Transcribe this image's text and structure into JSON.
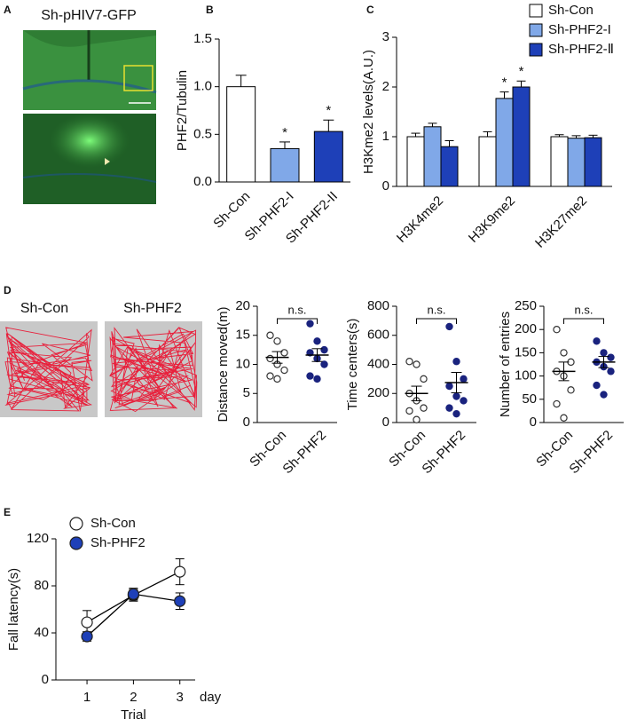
{
  "panel_labels": [
    "A",
    "B",
    "C",
    "D",
    "E"
  ],
  "image_panel": {
    "title": "Sh-pHIV7-GFP"
  },
  "open_field": {
    "labels": [
      "Sh-Con",
      "Sh-PHF2"
    ]
  },
  "chart_data": [
    {
      "type": "bar",
      "ylabel": "PHF2/Tubulin",
      "categories": [
        "Sh-Con",
        "Sh-PHF2-I",
        "Sh-PHF2-II"
      ],
      "values": [
        1.0,
        0.35,
        0.53
      ],
      "errors": [
        0.12,
        0.07,
        0.12
      ],
      "colors": [
        "#ffffff",
        "#80a8e8",
        "#1e40b8"
      ],
      "significance": [
        null,
        "*",
        "*"
      ],
      "ylim": [
        0,
        1.5
      ],
      "yticks": [
        {
          "value": 0,
          "label": "0.0"
        },
        {
          "value": 0.5,
          "label": "0.5"
        },
        {
          "value": 1,
          "label": "1.0"
        },
        {
          "value": 1.5,
          "label": "1.5"
        }
      ]
    },
    {
      "type": "grouped_bar",
      "ylabel": "H3Kme2 levels(A.U.)",
      "categories": [
        "H3K4me2",
        "H3K9me2",
        "H3K27me2"
      ],
      "series": [
        {
          "name": "Sh-Con",
          "color": "#ffffff",
          "values": [
            1.0,
            1.0,
            1.0
          ],
          "errors": [
            0.07,
            0.1,
            0.04
          ],
          "significance": [
            null,
            null,
            null
          ]
        },
        {
          "name": "Sh-PHF2-I",
          "color": "#80a8e8",
          "values": [
            1.2,
            1.77,
            0.97
          ],
          "errors": [
            0.07,
            0.13,
            0.05
          ],
          "significance": [
            null,
            "*",
            null
          ]
        },
        {
          "name": "Sh-PHF2-Ⅱ",
          "color": "#1e40b8",
          "values": [
            0.8,
            2.0,
            0.98
          ],
          "errors": [
            0.12,
            0.12,
            0.05
          ],
          "significance": [
            null,
            "*",
            null
          ]
        }
      ],
      "ylim": [
        0,
        3
      ],
      "yticks": [
        0,
        1,
        2,
        3
      ],
      "legend": "top-right"
    },
    {
      "type": "dotplot",
      "ylabel": "Distance moved(m)",
      "categories": [
        "Sh-Con",
        "Sh-PHF2"
      ],
      "groups": [
        {
          "values": [
            15,
            14,
            12,
            11,
            10,
            9,
            8,
            7.5
          ],
          "mean": 11.2,
          "sem": 1.0,
          "color": "#ffffff"
        },
        {
          "values": [
            17,
            14,
            12.5,
            12,
            11,
            10,
            8,
            7.5
          ],
          "mean": 11.6,
          "sem": 1.1,
          "color": "#1a237e"
        }
      ],
      "comparison": "n.s.",
      "ylim": [
        0,
        20
      ],
      "yticks": [
        0,
        5,
        10,
        15,
        20
      ]
    },
    {
      "type": "dotplot",
      "ylabel": "Time centers(s)",
      "categories": [
        "Sh-Con",
        "Sh-PHF2"
      ],
      "groups": [
        {
          "values": [
            420,
            400,
            300,
            200,
            150,
            100,
            80,
            20
          ],
          "mean": 200,
          "sem": 50,
          "color": "#ffffff"
        },
        {
          "values": [
            660,
            420,
            300,
            250,
            180,
            150,
            100,
            60
          ],
          "mean": 275,
          "sem": 70,
          "color": "#1a237e"
        }
      ],
      "comparison": "n.s.",
      "ylim": [
        0,
        800
      ],
      "yticks": [
        0,
        200,
        400,
        600,
        800
      ]
    },
    {
      "type": "dotplot",
      "ylabel": "Number of entries",
      "categories": [
        "Sh-Con",
        "Sh-PHF2"
      ],
      "groups": [
        {
          "values": [
            200,
            150,
            130,
            110,
            100,
            70,
            40,
            10
          ],
          "mean": 110,
          "sem": 20,
          "color": "#ffffff"
        },
        {
          "values": [
            175,
            150,
            140,
            130,
            120,
            110,
            80,
            60
          ],
          "mean": 130,
          "sem": 12,
          "color": "#1a237e"
        }
      ],
      "comparison": "n.s.",
      "ylim": [
        0,
        250
      ],
      "yticks": [
        0,
        50,
        100,
        150,
        200,
        250
      ]
    },
    {
      "type": "line",
      "ylabel": "Fall latency(s)",
      "xlabel": "Trial",
      "x_unit": "day",
      "x": [
        1,
        2,
        3
      ],
      "series": [
        {
          "name": "Sh-Con",
          "color": "#ffffff",
          "values": [
            49,
            72,
            92
          ],
          "errors": [
            10,
            5,
            11
          ]
        },
        {
          "name": "Sh-PHF2",
          "color": "#1e40b8",
          "values": [
            37,
            73,
            67
          ],
          "errors": [
            4,
            5,
            7
          ]
        }
      ],
      "xlim": [
        0.33,
        3.33
      ],
      "xticks": [
        1,
        2,
        3
      ],
      "ylim": [
        0,
        120
      ],
      "yticks": [
        0,
        40,
        80,
        120
      ],
      "legend": "top-left"
    }
  ]
}
